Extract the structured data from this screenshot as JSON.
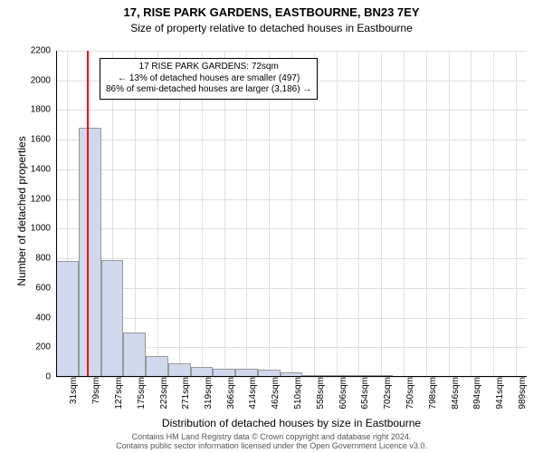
{
  "header": {
    "address": "17, RISE PARK GARDENS, EASTBOURNE, BN23 7EY",
    "subtitle": "Size of property relative to detached houses in Eastbourne",
    "title_fontsize": 13,
    "subtitle_fontsize": 12
  },
  "chart": {
    "type": "histogram",
    "ylabel": "Number of detached properties",
    "xlabel": "Distribution of detached houses by size in Eastbourne",
    "label_fontsize": 12,
    "tick_fontsize": 10,
    "background_color": "#ffffff",
    "grid_color": "#e0e0e0",
    "axis_color": "#000000",
    "bar_fill": "#cfd8ec",
    "bar_border": "#999999",
    "reference_line_color": "#ff0000",
    "reference_value": 72,
    "ylim": [
      0,
      2200
    ],
    "yticks": [
      0,
      200,
      400,
      600,
      800,
      1000,
      1200,
      1400,
      1600,
      1800,
      2000,
      2200
    ],
    "xlim": [
      7,
      1013
    ],
    "xticks": [
      {
        "pos": 31,
        "label": "31sqm"
      },
      {
        "pos": 79,
        "label": "79sqm"
      },
      {
        "pos": 127,
        "label": "127sqm"
      },
      {
        "pos": 175,
        "label": "175sqm"
      },
      {
        "pos": 223,
        "label": "223sqm"
      },
      {
        "pos": 271,
        "label": "271sqm"
      },
      {
        "pos": 319,
        "label": "319sqm"
      },
      {
        "pos": 366,
        "label": "366sqm"
      },
      {
        "pos": 414,
        "label": "414sqm"
      },
      {
        "pos": 462,
        "label": "462sqm"
      },
      {
        "pos": 510,
        "label": "510sqm"
      },
      {
        "pos": 558,
        "label": "558sqm"
      },
      {
        "pos": 606,
        "label": "606sqm"
      },
      {
        "pos": 654,
        "label": "654sqm"
      },
      {
        "pos": 702,
        "label": "702sqm"
      },
      {
        "pos": 750,
        "label": "750sqm"
      },
      {
        "pos": 798,
        "label": "798sqm"
      },
      {
        "pos": 846,
        "label": "846sqm"
      },
      {
        "pos": 894,
        "label": "894sqm"
      },
      {
        "pos": 941,
        "label": "941sqm"
      },
      {
        "pos": 989,
        "label": "989sqm"
      }
    ],
    "bars": [
      {
        "x_start": 7,
        "x_end": 55,
        "value": 780
      },
      {
        "x_start": 55,
        "x_end": 103,
        "value": 1680
      },
      {
        "x_start": 103,
        "x_end": 151,
        "value": 790
      },
      {
        "x_start": 151,
        "x_end": 199,
        "value": 300
      },
      {
        "x_start": 199,
        "x_end": 247,
        "value": 140
      },
      {
        "x_start": 247,
        "x_end": 295,
        "value": 90
      },
      {
        "x_start": 295,
        "x_end": 342,
        "value": 70
      },
      {
        "x_start": 342,
        "x_end": 390,
        "value": 55
      },
      {
        "x_start": 390,
        "x_end": 438,
        "value": 55
      },
      {
        "x_start": 438,
        "x_end": 486,
        "value": 50
      },
      {
        "x_start": 486,
        "x_end": 534,
        "value": 30
      },
      {
        "x_start": 534,
        "x_end": 582,
        "value": 10
      },
      {
        "x_start": 582,
        "x_end": 630,
        "value": 5
      },
      {
        "x_start": 630,
        "x_end": 678,
        "value": 3
      },
      {
        "x_start": 678,
        "x_end": 726,
        "value": 2
      }
    ],
    "annotation": {
      "line1": "17 RISE PARK GARDENS: 72sqm",
      "line2": "← 13% of detached houses are smaller (497)",
      "line3": "86% of semi-detached houses are larger (3,186) →",
      "fontsize": 10
    }
  },
  "footer": {
    "line1": "Contains HM Land Registry data © Crown copyright and database right 2024.",
    "line2": "Contains public sector information licensed under the Open Government Licence v3.0.",
    "fontsize": 9,
    "color": "#555555"
  }
}
